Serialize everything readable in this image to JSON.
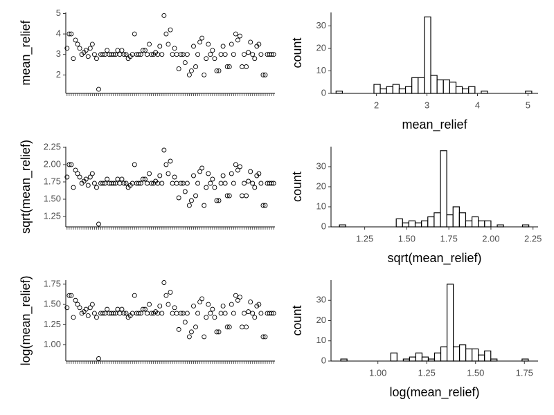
{
  "chart_data": [
    {
      "type": "scatter",
      "ylabel": "mean_relief",
      "color": "#000000",
      "categories": [
        null,
        null,
        null,
        null,
        null,
        null,
        null,
        null,
        null,
        null,
        null,
        null,
        null,
        null,
        null,
        null,
        null,
        null,
        null,
        null,
        null,
        null,
        null,
        null,
        null,
        null,
        null,
        null,
        null,
        null,
        null,
        null,
        null,
        null,
        null,
        null,
        null,
        null,
        null,
        null,
        null,
        null,
        null,
        null,
        null,
        null,
        null,
        null,
        null,
        null,
        null,
        null,
        null,
        null,
        null,
        null,
        null,
        null,
        null,
        null,
        null,
        null,
        null,
        null,
        null,
        null,
        null,
        null,
        null,
        null,
        null,
        null,
        null,
        null,
        null,
        null,
        null,
        null,
        null,
        null,
        null,
        null,
        null,
        null,
        null,
        null,
        null,
        null,
        null,
        null,
        null,
        null,
        null,
        null,
        null,
        null,
        null,
        null,
        null
      ],
      "values": [
        3.3,
        4.0,
        4.0,
        2.8,
        3.7,
        3.5,
        3.3,
        3.0,
        3.1,
        3.2,
        2.9,
        3.3,
        3.5,
        3.0,
        2.8,
        1.3,
        3.0,
        3.0,
        3.0,
        3.2,
        3.0,
        3.0,
        3.0,
        3.0,
        3.2,
        3.0,
        3.2,
        3.0,
        3.0,
        2.8,
        2.9,
        3.0,
        4.0,
        3.0,
        3.0,
        3.0,
        3.2,
        3.2,
        3.0,
        3.5,
        3.0,
        3.0,
        3.1,
        3.0,
        3.4,
        3.0,
        4.9,
        4.0,
        3.5,
        4.2,
        3.0,
        3.3,
        3.0,
        2.3,
        3.0,
        3.0,
        2.6,
        3.0,
        2.0,
        2.2,
        3.4,
        2.4,
        3.0,
        3.6,
        3.8,
        2.0,
        2.8,
        3.5,
        3.0,
        3.2,
        2.8,
        2.2,
        2.2,
        3.0,
        3.4,
        3.0,
        2.4,
        2.4,
        3.5,
        3.0,
        4.0,
        3.7,
        3.9,
        2.4,
        3.0,
        2.4,
        3.1,
        3.6,
        3.0,
        2.8,
        3.4,
        3.5,
        3.0,
        2.0,
        2.0,
        3.0,
        3.0,
        3.0,
        3.0
      ],
      "ylim": [
        1.1,
        5.05
      ],
      "yticks": [
        2,
        3,
        4,
        5
      ]
    },
    {
      "type": "histogram",
      "xlabel": "mean_relief",
      "ylabel": "count",
      "color": "#000000",
      "fill": "#ffffff",
      "bins": [
        1.2,
        1.325,
        1.45,
        1.575,
        1.7,
        1.825,
        1.95,
        2.075,
        2.2,
        2.325,
        2.45,
        2.575,
        2.7,
        2.825,
        2.95,
        3.075,
        3.2,
        3.325,
        3.45,
        3.575,
        3.7,
        3.825,
        3.95,
        4.075,
        4.2,
        4.325,
        4.45,
        4.575,
        4.7,
        4.825,
        4.95,
        5.075
      ],
      "values": [
        1,
        0,
        0,
        0,
        0,
        0,
        4,
        2,
        3,
        4,
        2,
        3,
        7,
        7,
        34,
        8,
        6,
        6,
        5,
        3,
        2,
        3,
        0,
        1,
        0,
        0,
        0,
        0,
        0,
        0,
        1
      ],
      "xlim": [
        1.1,
        5.2
      ],
      "xticks": [
        2,
        3,
        4,
        5
      ],
      "ylim": [
        0,
        36
      ],
      "yticks": [
        0,
        10,
        20,
        30
      ]
    },
    {
      "type": "scatter",
      "ylabel": "sqrt(mean_relief)",
      "color": "#000000",
      "categories": [
        null,
        null,
        null,
        null,
        null,
        null,
        null,
        null,
        null,
        null,
        null,
        null,
        null,
        null,
        null,
        null,
        null,
        null,
        null,
        null,
        null,
        null,
        null,
        null,
        null,
        null,
        null,
        null,
        null,
        null,
        null,
        null,
        null,
        null,
        null,
        null,
        null,
        null,
        null,
        null,
        null,
        null,
        null,
        null,
        null,
        null,
        null,
        null,
        null,
        null,
        null,
        null,
        null,
        null,
        null,
        null,
        null,
        null,
        null,
        null,
        null,
        null,
        null,
        null,
        null,
        null,
        null,
        null,
        null,
        null,
        null,
        null,
        null,
        null,
        null,
        null,
        null,
        null,
        null,
        null,
        null,
        null,
        null,
        null,
        null,
        null,
        null,
        null,
        null,
        null,
        null,
        null,
        null,
        null,
        null,
        null,
        null,
        null,
        null
      ],
      "values": [
        1.82,
        2.0,
        2.0,
        1.67,
        1.92,
        1.87,
        1.82,
        1.73,
        1.76,
        1.79,
        1.7,
        1.82,
        1.87,
        1.73,
        1.67,
        1.14,
        1.73,
        1.73,
        1.73,
        1.79,
        1.73,
        1.73,
        1.73,
        1.73,
        1.79,
        1.73,
        1.79,
        1.73,
        1.73,
        1.67,
        1.7,
        1.73,
        2.0,
        1.73,
        1.73,
        1.73,
        1.79,
        1.79,
        1.73,
        1.87,
        1.73,
        1.73,
        1.76,
        1.73,
        1.84,
        1.73,
        2.21,
        2.0,
        1.87,
        2.05,
        1.73,
        1.82,
        1.73,
        1.52,
        1.73,
        1.73,
        1.61,
        1.73,
        1.41,
        1.48,
        1.84,
        1.55,
        1.73,
        1.9,
        1.95,
        1.41,
        1.67,
        1.87,
        1.73,
        1.79,
        1.67,
        1.48,
        1.48,
        1.73,
        1.84,
        1.73,
        1.55,
        1.55,
        1.87,
        1.73,
        2.0,
        1.92,
        1.97,
        1.55,
        1.73,
        1.55,
        1.76,
        1.9,
        1.73,
        1.67,
        1.84,
        1.87,
        1.73,
        1.41,
        1.41,
        1.73,
        1.73,
        1.73,
        1.73
      ],
      "ylim": [
        1.1,
        2.26
      ],
      "yticks": [
        1.25,
        {
          "value": 1.5,
          "label": "1.50"
        },
        {
          "value": 1.75,
          "label": "1.75"
        },
        {
          "value": 2.0,
          "label": "2.00"
        },
        {
          "value": 2.25,
          "label": "2.25"
        }
      ]
    },
    {
      "type": "histogram",
      "xlabel": "sqrt(mean_relief)",
      "ylabel": "count",
      "color": "#000000",
      "fill": "#ffffff",
      "bins": [
        1.1,
        1.1375,
        1.175,
        1.2125,
        1.25,
        1.2875,
        1.325,
        1.3625,
        1.4,
        1.4375,
        1.475,
        1.5125,
        1.55,
        1.5875,
        1.625,
        1.6625,
        1.7,
        1.7375,
        1.775,
        1.8125,
        1.85,
        1.8875,
        1.925,
        1.9625,
        2.0,
        2.0375,
        2.075,
        2.1125,
        2.15,
        2.1875,
        2.225
      ],
      "values": [
        1,
        0,
        0,
        0,
        0,
        0,
        0,
        0,
        0,
        4,
        2,
        3,
        2,
        3,
        5,
        7,
        38,
        6,
        10,
        7,
        3,
        5,
        3,
        3,
        0,
        1,
        0,
        0,
        0,
        1
      ],
      "xlim": [
        1.05,
        2.28
      ],
      "xticks": [
        1.25,
        {
          "value": 1.5,
          "label": "1.50"
        },
        {
          "value": 1.75,
          "label": "1.75"
        },
        {
          "value": 2.0,
          "label": "2.00"
        },
        {
          "value": 2.25,
          "label": "2.25"
        }
      ],
      "ylim": [
        0,
        40
      ],
      "yticks": [
        0,
        10,
        20,
        30
      ]
    },
    {
      "type": "scatter",
      "ylabel": "log(mean_relief)",
      "color": "#000000",
      "categories": [
        null,
        null,
        null,
        null,
        null,
        null,
        null,
        null,
        null,
        null,
        null,
        null,
        null,
        null,
        null,
        null,
        null,
        null,
        null,
        null,
        null,
        null,
        null,
        null,
        null,
        null,
        null,
        null,
        null,
        null,
        null,
        null,
        null,
        null,
        null,
        null,
        null,
        null,
        null,
        null,
        null,
        null,
        null,
        null,
        null,
        null,
        null,
        null,
        null,
        null,
        null,
        null,
        null,
        null,
        null,
        null,
        null,
        null,
        null,
        null,
        null,
        null,
        null,
        null,
        null,
        null,
        null,
        null,
        null,
        null,
        null,
        null,
        null,
        null,
        null,
        null,
        null,
        null,
        null,
        null,
        null,
        null,
        null,
        null,
        null,
        null,
        null,
        null,
        null,
        null,
        null,
        null,
        null,
        null,
        null,
        null,
        null,
        null,
        null
      ],
      "values": [
        1.46,
        1.61,
        1.61,
        1.34,
        1.55,
        1.5,
        1.46,
        1.39,
        1.41,
        1.44,
        1.36,
        1.46,
        1.5,
        1.39,
        1.34,
        0.83,
        1.39,
        1.39,
        1.39,
        1.44,
        1.39,
        1.39,
        1.39,
        1.39,
        1.44,
        1.39,
        1.44,
        1.39,
        1.39,
        1.34,
        1.36,
        1.39,
        1.61,
        1.39,
        1.39,
        1.39,
        1.44,
        1.44,
        1.39,
        1.5,
        1.39,
        1.39,
        1.41,
        1.39,
        1.48,
        1.39,
        1.77,
        1.61,
        1.5,
        1.65,
        1.39,
        1.46,
        1.39,
        1.19,
        1.39,
        1.39,
        1.28,
        1.39,
        1.1,
        1.16,
        1.48,
        1.22,
        1.39,
        1.53,
        1.57,
        1.1,
        1.34,
        1.5,
        1.39,
        1.44,
        1.34,
        1.16,
        1.16,
        1.39,
        1.48,
        1.39,
        1.22,
        1.22,
        1.5,
        1.39,
        1.61,
        1.55,
        1.59,
        1.22,
        1.39,
        1.22,
        1.41,
        1.53,
        1.39,
        1.34,
        1.48,
        1.5,
        1.39,
        1.1,
        1.1,
        1.39,
        1.39,
        1.39,
        1.39
      ],
      "ylim": [
        0.8,
        1.8
      ],
      "yticks": [
        {
          "value": 1.0,
          "label": "1.00"
        },
        1.25,
        {
          "value": 1.5,
          "label": "1.50"
        },
        {
          "value": 1.75,
          "label": "1.75"
        }
      ]
    },
    {
      "type": "histogram",
      "xlabel": "log(mean_relief)",
      "ylabel": "count",
      "color": "#000000",
      "fill": "#ffffff",
      "bins": [
        0.81,
        0.842,
        0.874,
        0.906,
        0.938,
        0.97,
        1.002,
        1.034,
        1.066,
        1.098,
        1.13,
        1.162,
        1.194,
        1.226,
        1.258,
        1.29,
        1.322,
        1.354,
        1.386,
        1.418,
        1.45,
        1.482,
        1.514,
        1.546,
        1.578,
        1.61,
        1.642,
        1.674,
        1.706,
        1.738,
        1.77
      ],
      "values": [
        1,
        0,
        0,
        0,
        0,
        0,
        0,
        0,
        4,
        0,
        1,
        2,
        4,
        2,
        1,
        4,
        7,
        38,
        7,
        8,
        6,
        6,
        3,
        5,
        1,
        0,
        0,
        0,
        0,
        1
      ],
      "xlim": [
        0.76,
        1.82
      ],
      "xticks": [
        {
          "value": 1.0,
          "label": "1.00"
        },
        1.25,
        {
          "value": 1.5,
          "label": "1.50"
        },
        {
          "value": 1.75,
          "label": "1.75"
        }
      ],
      "ylim": [
        0,
        40
      ],
      "yticks": [
        0,
        10,
        20,
        30
      ]
    }
  ]
}
